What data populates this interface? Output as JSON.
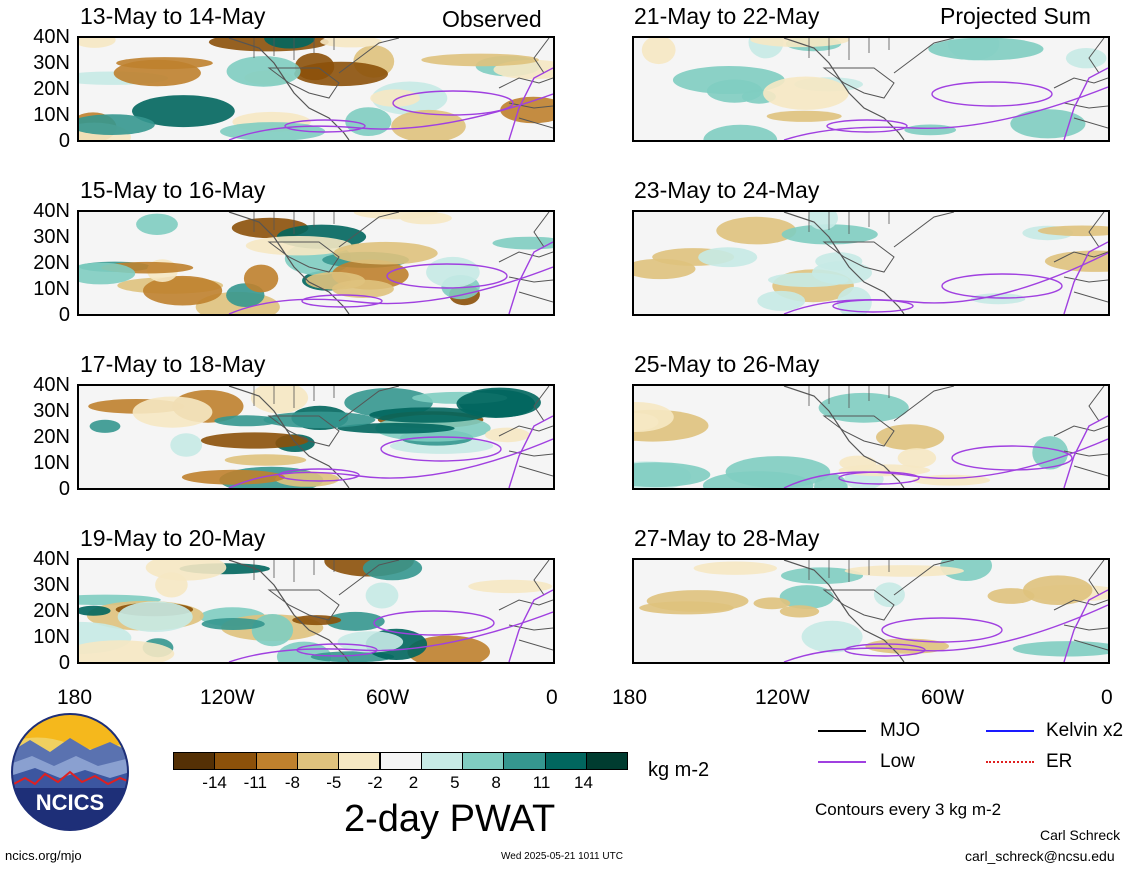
{
  "columns": {
    "left_label": "Observed",
    "right_label": "Projected Sum"
  },
  "panels_left": [
    {
      "title": "13-May to 14-May"
    },
    {
      "title": "15-May to 16-May"
    },
    {
      "title": "17-May to 18-May"
    },
    {
      "title": "19-May to 20-May"
    }
  ],
  "panels_right": [
    {
      "title": "21-May to 22-May"
    },
    {
      "title": "23-May to 24-May"
    },
    {
      "title": "25-May to 26-May"
    },
    {
      "title": "27-May to 28-May"
    }
  ],
  "y_labels": [
    "40N",
    "30N",
    "20N",
    "10N",
    "0"
  ],
  "x_labels": [
    "180",
    "120W",
    "60W",
    "0"
  ],
  "colorbar": {
    "colors": [
      "#543005",
      "#8c510a",
      "#bf812d",
      "#dfc27d",
      "#f6e8c3",
      "#f5f5f5",
      "#c7eae5",
      "#80cdc1",
      "#35978f",
      "#01665e",
      "#003c30"
    ],
    "tick_labels": [
      "-14",
      "-11",
      "-8",
      "-5",
      "-2",
      "2",
      "5",
      "8",
      "11",
      "14"
    ],
    "units": "kg m-2"
  },
  "main_title": "2-day PWAT",
  "legend": {
    "items": [
      {
        "label": "MJO",
        "color": "#000000"
      },
      {
        "label": "Kelvin x2",
        "color": "#1a1aff"
      },
      {
        "label": "Low",
        "color": "#a040e0"
      },
      {
        "label": "ER",
        "color": "#e02020"
      }
    ],
    "contour_note": "Contours every 3 kg m-2"
  },
  "logo": {
    "text": "NCICS"
  },
  "footer": {
    "url": "ncics.org/mjo",
    "timestamp": "Wed 2025-05-21 1011 UTC",
    "author": "Carl Schreck",
    "email": "carl_schreck@ncsu.edu"
  }
}
